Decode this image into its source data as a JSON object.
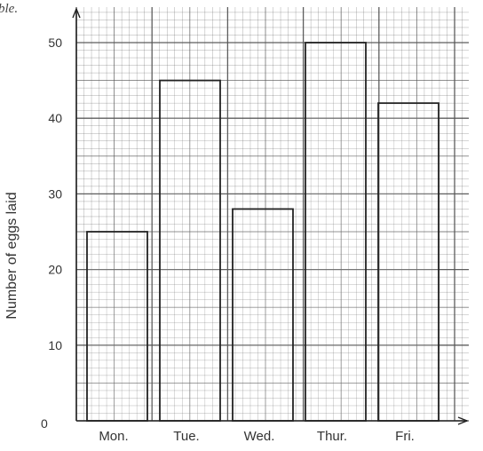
{
  "caption_fragment": "ble.",
  "chart_data": {
    "type": "bar",
    "categories": [
      "Mon.",
      "Tue.",
      "Wed.",
      "Thur.",
      "Fri."
    ],
    "values": [
      25,
      45,
      28,
      50,
      42
    ],
    "title": "",
    "xlabel": "",
    "ylabel": "Number of eggs laid",
    "ylim": [
      0,
      50
    ],
    "yticks": [
      0,
      10,
      20,
      30,
      40,
      50
    ],
    "grid": true,
    "bar_fill": "none",
    "bar_stroke": "#222222",
    "grid_color": "#555555"
  }
}
